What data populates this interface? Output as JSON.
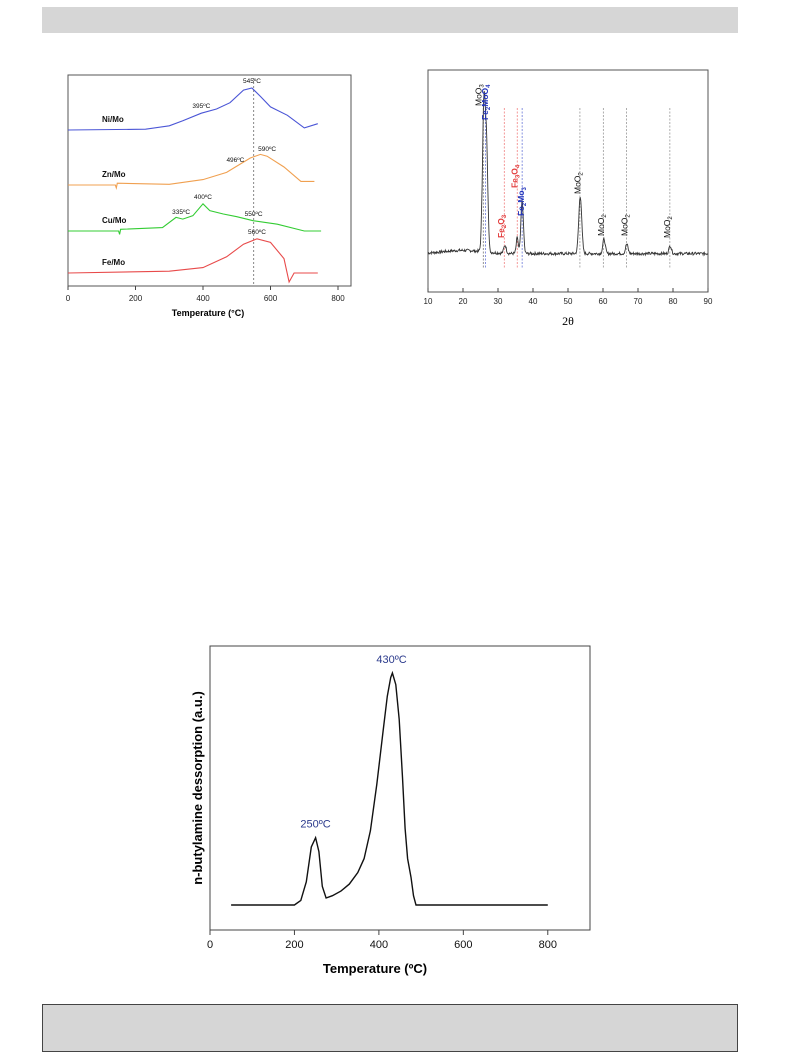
{
  "chart_data": [
    {
      "type": "line",
      "title": "",
      "xlabel": "Temperature (°C)",
      "ylabel": "",
      "xlim": [
        0,
        800
      ],
      "x_ticks": [
        "0",
        "200",
        "400",
        "600",
        "800"
      ],
      "reference_line_x": 550,
      "series": [
        {
          "name": "Ni/Mo",
          "color": "#4a55d6",
          "offset": 3.0,
          "points": [
            [
              0,
              0
            ],
            [
              230,
              0.02
            ],
            [
              300,
              0.1
            ],
            [
              340,
              0.22
            ],
            [
              395,
              0.4
            ],
            [
              440,
              0.5
            ],
            [
              480,
              0.65
            ],
            [
              520,
              0.95
            ],
            [
              545,
              1.0
            ],
            [
              570,
              0.8
            ],
            [
              600,
              0.55
            ],
            [
              650,
              0.35
            ],
            [
              700,
              0.05
            ],
            [
              740,
              0.15
            ]
          ]
        },
        {
          "name": "Zn/Mo",
          "color": "#f0a050",
          "offset": 2.0,
          "points": [
            [
              0,
              0
            ],
            [
              140,
              0.0
            ],
            [
              143,
              -0.08
            ],
            [
              146,
              0.05
            ],
            [
              300,
              0.02
            ],
            [
              400,
              0.15
            ],
            [
              470,
              0.35
            ],
            [
              496,
              0.5
            ],
            [
              540,
              0.75
            ],
            [
              570,
              0.85
            ],
            [
              590,
              0.8
            ],
            [
              640,
              0.5
            ],
            [
              690,
              0.1
            ],
            [
              730,
              0.1
            ]
          ]
        },
        {
          "name": "Cu/Mo",
          "color": "#33cc33",
          "offset": 1.0,
          "points": [
            [
              0,
              0
            ],
            [
              150,
              0
            ],
            [
              153,
              -0.1
            ],
            [
              156,
              0.05
            ],
            [
              280,
              0.1
            ],
            [
              320,
              0.4
            ],
            [
              340,
              0.35
            ],
            [
              370,
              0.45
            ],
            [
              400,
              0.8
            ],
            [
              420,
              0.6
            ],
            [
              460,
              0.5
            ],
            [
              500,
              0.42
            ],
            [
              550,
              0.3
            ],
            [
              620,
              0.2
            ],
            [
              700,
              0.0
            ],
            [
              750,
              0.0
            ]
          ]
        },
        {
          "name": "Fe/Mo",
          "color": "#e84a4a",
          "offset": 0.0,
          "points": [
            [
              0,
              0
            ],
            [
              300,
              0.05
            ],
            [
              400,
              0.15
            ],
            [
              470,
              0.45
            ],
            [
              520,
              0.8
            ],
            [
              560,
              0.95
            ],
            [
              600,
              0.85
            ],
            [
              640,
              0.4
            ],
            [
              655,
              -0.25
            ],
            [
              670,
              0.0
            ],
            [
              740,
              0.0
            ]
          ]
        }
      ],
      "annotations": [
        {
          "text": "395ºC",
          "x": 395,
          "series": "Ni/Mo"
        },
        {
          "text": "545ºC",
          "x": 545,
          "series": "Ni/Mo"
        },
        {
          "text": "496ºC",
          "x": 496,
          "series": "Zn/Mo"
        },
        {
          "text": "590ºC",
          "x": 590,
          "series": "Zn/Mo"
        },
        {
          "text": "335ºC",
          "x": 335,
          "series": "Cu/Mo"
        },
        {
          "text": "400ºC",
          "x": 400,
          "series": "Cu/Mo"
        },
        {
          "text": "550ºC",
          "x": 550,
          "series": "Cu/Mo"
        },
        {
          "text": "560ºC",
          "x": 560,
          "series": "Fe/Mo"
        }
      ]
    },
    {
      "type": "line",
      "title": "",
      "xlabel": "2θ",
      "ylabel": "",
      "xlim": [
        10,
        90
      ],
      "x_ticks": [
        "10",
        "20",
        "30",
        "40",
        "50",
        "60",
        "70",
        "80",
        "90"
      ],
      "peaks": [
        {
          "x": 26.0,
          "h": 0.95,
          "w": 0.6
        },
        {
          "x": 26.8,
          "h": 0.55,
          "w": 0.5
        },
        {
          "x": 32.0,
          "h": 0.05,
          "w": 0.5
        },
        {
          "x": 35.5,
          "h": 0.1,
          "w": 0.4
        },
        {
          "x": 36.9,
          "h": 0.33,
          "w": 0.5
        },
        {
          "x": 53.5,
          "h": 0.36,
          "w": 0.6
        },
        {
          "x": 60.3,
          "h": 0.09,
          "w": 0.5
        },
        {
          "x": 66.8,
          "h": 0.06,
          "w": 0.5
        },
        {
          "x": 79.2,
          "h": 0.05,
          "w": 0.5
        }
      ],
      "phase_labels": [
        {
          "text": "MoO",
          "sub": "3",
          "x": 25.3,
          "color": "#111111"
        },
        {
          "text": "Fe",
          "sub": "2",
          "text2": "MoO",
          "sub2": "4",
          "x": 27.2,
          "color": "#2233bb"
        },
        {
          "text": "Fe",
          "sub": "2",
          "text2": "O",
          "sub2": "3",
          "x": 31.7,
          "color": "#e23a3a"
        },
        {
          "text": "Fe",
          "sub": "3",
          "text2": "O",
          "sub2": "4",
          "x": 35.6,
          "color": "#e23a3a"
        },
        {
          "text": "Fe",
          "sub": "2",
          "text2": "Mo",
          "sub2": "3",
          "x": 37.4,
          "color": "#2233bb"
        },
        {
          "text": "MoO",
          "sub": "2",
          "x": 53.5,
          "color": "#111111"
        },
        {
          "text": "MoO",
          "sub": "2",
          "x": 60.3,
          "color": "#111111"
        },
        {
          "text": "MoO",
          "sub": "2",
          "x": 67.0,
          "color": "#111111"
        },
        {
          "text": "MoO",
          "sub": "2",
          "x": 79.2,
          "color": "#111111"
        }
      ],
      "reference_lines": [
        {
          "x": 25.8,
          "color": "#777777"
        },
        {
          "x": 26.4,
          "color": "#6a78d8"
        },
        {
          "x": 31.8,
          "color": "#f08080"
        },
        {
          "x": 35.5,
          "color": "#f08080"
        },
        {
          "x": 36.9,
          "color": "#6a78d8"
        },
        {
          "x": 53.4,
          "color": "#999999"
        },
        {
          "x": 60.1,
          "color": "#999999"
        },
        {
          "x": 66.7,
          "color": "#999999"
        },
        {
          "x": 79.1,
          "color": "#999999"
        }
      ]
    },
    {
      "type": "line",
      "title": "",
      "xlabel": "Temperature (ºC)",
      "ylabel": "n-butylamine dessorption (a.u.)",
      "xlim": [
        0,
        900
      ],
      "x_ticks": [
        "0",
        "200",
        "400",
        "600",
        "800"
      ],
      "points": [
        [
          50,
          0
        ],
        [
          200,
          0
        ],
        [
          215,
          0.02
        ],
        [
          228,
          0.1
        ],
        [
          240,
          0.25
        ],
        [
          250,
          0.29
        ],
        [
          258,
          0.23
        ],
        [
          266,
          0.08
        ],
        [
          275,
          0.03
        ],
        [
          290,
          0.04
        ],
        [
          310,
          0.06
        ],
        [
          330,
          0.09
        ],
        [
          350,
          0.14
        ],
        [
          365,
          0.2
        ],
        [
          380,
          0.32
        ],
        [
          395,
          0.52
        ],
        [
          410,
          0.75
        ],
        [
          420,
          0.9
        ],
        [
          428,
          0.98
        ],
        [
          432,
          1.0
        ],
        [
          440,
          0.95
        ],
        [
          448,
          0.8
        ],
        [
          456,
          0.55
        ],
        [
          462,
          0.33
        ],
        [
          468,
          0.2
        ],
        [
          476,
          0.12
        ],
        [
          482,
          0.04
        ],
        [
          488,
          0.0
        ],
        [
          800,
          0.0
        ]
      ],
      "annotations": [
        {
          "text": "250ºC",
          "x": 250,
          "y": 0.29
        },
        {
          "text": "430ºC",
          "x": 430,
          "y": 1.0
        }
      ]
    }
  ]
}
